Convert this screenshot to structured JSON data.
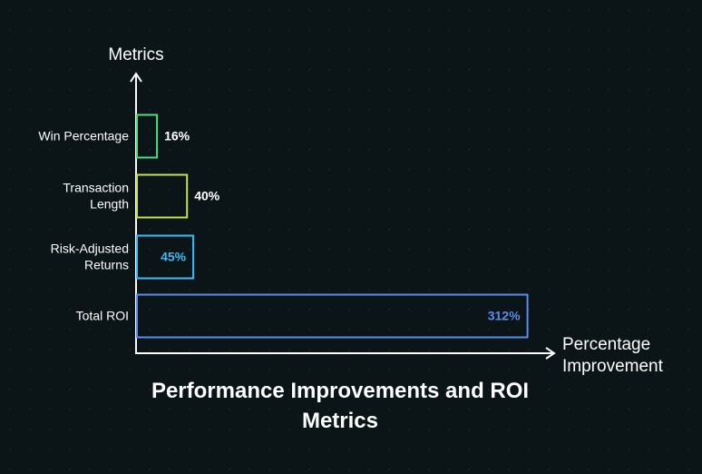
{
  "chart_data": {
    "type": "bar",
    "orientation": "horizontal",
    "title": "Performance Improvements and ROI Metrics",
    "ylabel": "Metrics",
    "xlabel": "Percentage Improvement",
    "unit": "%",
    "categories": [
      "Win Percentage",
      "Transaction Length",
      "Risk-Adjusted Returns",
      "Total ROI"
    ],
    "category_lines": [
      [
        "Win Percentage"
      ],
      [
        "Transaction",
        "Length"
      ],
      [
        "Risk-Adjusted",
        "Returns"
      ],
      [
        "Total ROI"
      ]
    ],
    "values": [
      16,
      40,
      45,
      312
    ],
    "value_labels": [
      "16%",
      "40%",
      "45%",
      "312%"
    ],
    "bar_colors": [
      "#4ade80",
      "#c6e24e",
      "#38bdf8",
      "#5b8def"
    ],
    "label_colors": [
      "#ffffff",
      "#ffffff",
      "#38bdf8",
      "#5b8def"
    ],
    "label_placement": [
      "outside",
      "outside",
      "inside",
      "inside"
    ],
    "xlim": [
      0,
      320
    ],
    "grid": false,
    "legend": "none"
  },
  "colors": {
    "background": "#0b1417",
    "axis": "#ffffff",
    "text": "#ffffff"
  }
}
